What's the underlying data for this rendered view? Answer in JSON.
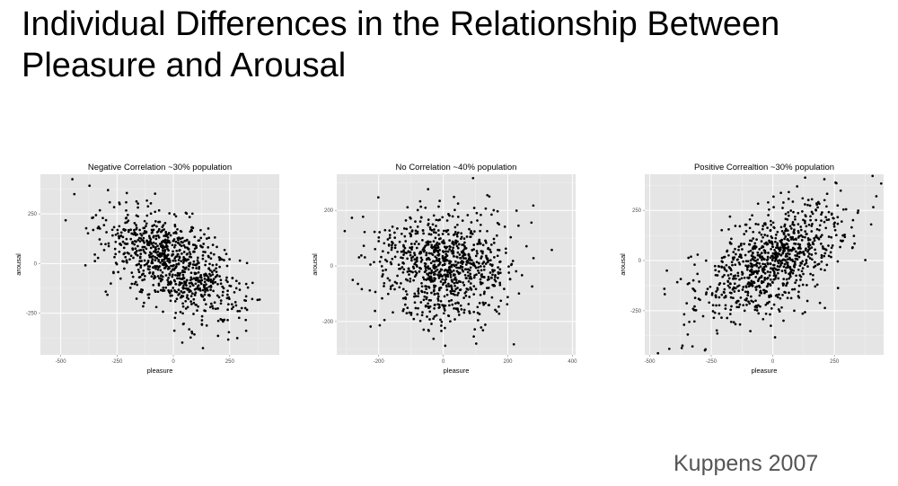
{
  "slide": {
    "title_line1": "Individual Differences in the Relationship Between",
    "title_line2": "Pleasure and Arousal",
    "citation": "Kuppens 2007"
  },
  "colors": {
    "panel_bg": "#e5e5e5",
    "grid": "#ffffff",
    "points": "#000000",
    "axis_text": "#4d4d4d"
  },
  "chart_data": [
    {
      "type": "scatter",
      "title": "Negative Correlation ~30% population",
      "xlabel": "pleasure",
      "ylabel": "arousal",
      "xlim": [
        -590,
        470
      ],
      "ylim": [
        -460,
        450
      ],
      "xticks": [
        -500,
        -250,
        0,
        250
      ],
      "yticks": [
        -250,
        0,
        250
      ],
      "grid": true,
      "n_points": 900,
      "correlation": -0.6,
      "x_sd": 150,
      "y_sd": 140
    },
    {
      "type": "scatter",
      "title": "No Correlation ~40% population",
      "xlabel": "pleasure",
      "ylabel": "arousal",
      "xlim": [
        -330,
        410
      ],
      "ylim": [
        -320,
        330
      ],
      "xticks": [
        -200,
        0,
        200,
        400
      ],
      "yticks": [
        -200,
        0,
        200
      ],
      "grid": true,
      "n_points": 900,
      "correlation": 0.0,
      "x_sd": 100,
      "y_sd": 100
    },
    {
      "type": "scatter",
      "title": "Positive Correaltion ~30% population",
      "xlabel": "pleasure",
      "ylabel": "arousal",
      "xlim": [
        -520,
        450
      ],
      "ylim": [
        -470,
        430
      ],
      "xticks": [
        -500,
        -250,
        0,
        250
      ],
      "yticks": [
        -250,
        0,
        250
      ],
      "grid": true,
      "n_points": 900,
      "correlation": 0.6,
      "x_sd": 150,
      "y_sd": 150
    }
  ]
}
